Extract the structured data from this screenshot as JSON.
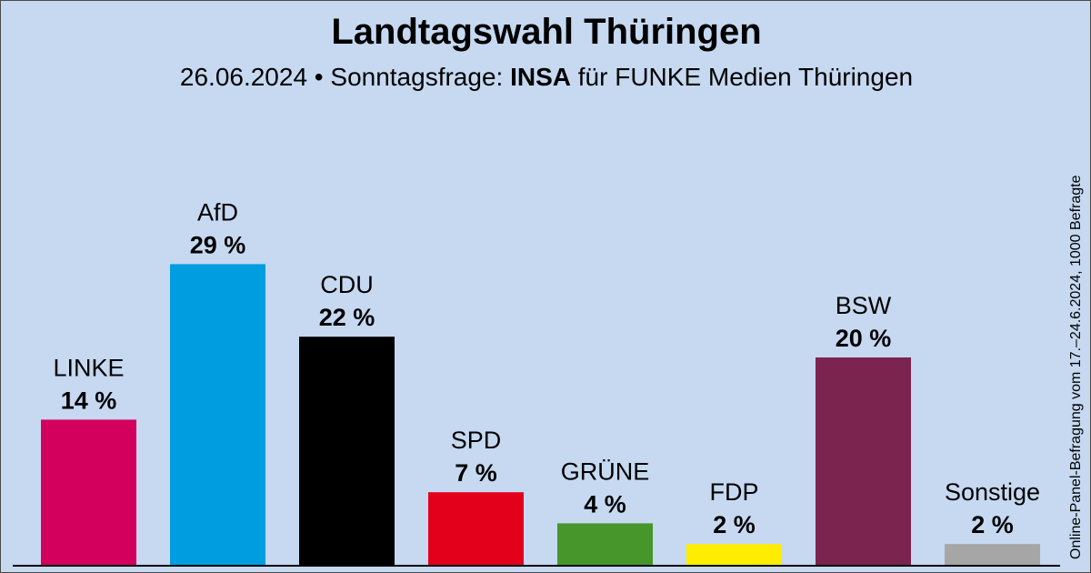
{
  "chart_data": {
    "type": "bar",
    "title": "Landtagswahl Thüringen",
    "subtitle": {
      "prefix": "26.06.2024 • Sonntagsfrage: ",
      "institute": "INSA",
      "suffix": " für FUNKE Medien Thüringen"
    },
    "note": "Online-Panel-Befragung vom 17.–24.6.2024, 1000 Befragte",
    "unit": " %",
    "categories": [
      "LINKE",
      "AfD",
      "CDU",
      "SPD",
      "GRÜNE",
      "FDP",
      "BSW",
      "Sonstige"
    ],
    "values": [
      14,
      29,
      22,
      7,
      4,
      2,
      20,
      2
    ],
    "colors": [
      "#d4005e",
      "#009ee0",
      "#000000",
      "#e3001b",
      "#46962b",
      "#ffed00",
      "#7b2450",
      "#a6a6a6"
    ],
    "ylim": [
      0,
      31
    ],
    "grid": false,
    "legend": "none"
  }
}
